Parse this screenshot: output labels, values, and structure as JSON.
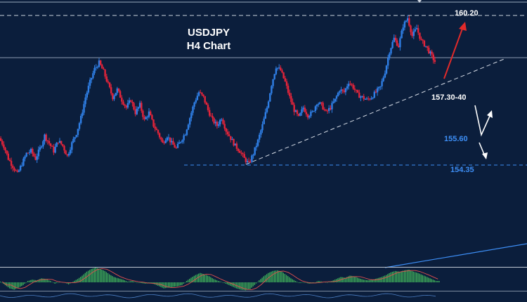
{
  "chart_data": {
    "type": "candlestick",
    "title": "USDJPY",
    "subtitle": "H4 Chart",
    "colors": {
      "background": "#0b1e3c",
      "bull": "#2f7fe6",
      "bear": "#e3243a",
      "text": "#ffffff",
      "level_blue": "#3d8ef5",
      "histogram": "#3fae5a",
      "signal": "#e0504f",
      "projection_up": "#e02a2a",
      "projection_white": "#ffffff"
    },
    "levels": [
      {
        "label": "160.20",
        "price": 160.2,
        "color": "#ffffff",
        "style": "dashed"
      },
      {
        "label": "157.30-40",
        "price": 157.35,
        "color": "#ffffff",
        "style": "trendline"
      },
      {
        "label": "155.60",
        "price": 155.6,
        "color": "#3d8ef5",
        "style": "none"
      },
      {
        "label": "154.35",
        "price": 154.35,
        "color": "#3d8ef5",
        "style": "dashed"
      }
    ],
    "resistance_line_price": 158.55,
    "price_path": [
      155.4,
      155.1,
      154.6,
      154.3,
      154.0,
      154.4,
      154.8,
      154.9,
      154.6,
      155.0,
      155.5,
      155.2,
      154.9,
      155.3,
      155.1,
      154.7,
      155.2,
      155.6,
      156.2,
      157.0,
      157.6,
      158.1,
      158.35,
      158.0,
      157.5,
      157.0,
      157.3,
      156.9,
      156.6,
      156.9,
      156.4,
      156.7,
      156.1,
      156.4,
      155.9,
      155.6,
      155.2,
      155.5,
      155.2,
      155.0,
      155.3,
      155.6,
      156.2,
      156.8,
      157.2,
      157.0,
      156.5,
      156.1,
      155.9,
      156.2,
      155.7,
      155.4,
      155.1,
      154.9,
      154.6,
      154.4,
      154.8,
      155.3,
      155.9,
      156.6,
      157.5,
      158.2,
      158.05,
      157.6,
      157.0,
      156.5,
      156.2,
      156.6,
      156.3,
      156.4,
      156.8,
      156.7,
      156.4,
      156.6,
      156.9,
      157.3,
      157.2,
      157.6,
      157.4,
      157.1,
      157.0,
      156.9,
      157.0,
      157.2,
      157.4,
      158.0,
      158.8,
      159.3,
      159.0,
      159.8,
      160.1,
      159.4,
      159.7,
      159.2,
      159.0,
      158.7,
      158.4
    ],
    "oscillator": [
      0.05,
      -0.2,
      -0.45,
      -0.55,
      -0.4,
      -0.2,
      0.1,
      0.2,
      0.15,
      0.3,
      0.25,
      0.1,
      -0.1,
      0.05,
      0.0,
      -0.15,
      0.05,
      0.25,
      0.5,
      0.8,
      1.0,
      1.1,
      1.0,
      0.85,
      0.6,
      0.4,
      0.3,
      0.2,
      0.05,
      0.1,
      0.0,
      -0.05,
      -0.1,
      -0.05,
      -0.15,
      -0.3,
      -0.45,
      -0.4,
      -0.35,
      -0.3,
      -0.2,
      0.1,
      0.35,
      0.55,
      0.7,
      0.6,
      0.45,
      0.25,
      0.1,
      0.0,
      -0.15,
      -0.3,
      -0.45,
      -0.55,
      -0.6,
      -0.5,
      -0.2,
      0.15,
      0.45,
      0.7,
      0.85,
      0.9,
      0.8,
      0.55,
      0.3,
      0.1,
      -0.05,
      0.0,
      -0.1,
      -0.05,
      0.1,
      0.05,
      0.0,
      0.1,
      0.25,
      0.4,
      0.35,
      0.5,
      0.45,
      0.3,
      0.2,
      0.15,
      0.2,
      0.3,
      0.4,
      0.55,
      0.75,
      0.85,
      0.8,
      0.9,
      0.95,
      0.8,
      0.7,
      0.55,
      0.4,
      0.25,
      0.1
    ]
  }
}
